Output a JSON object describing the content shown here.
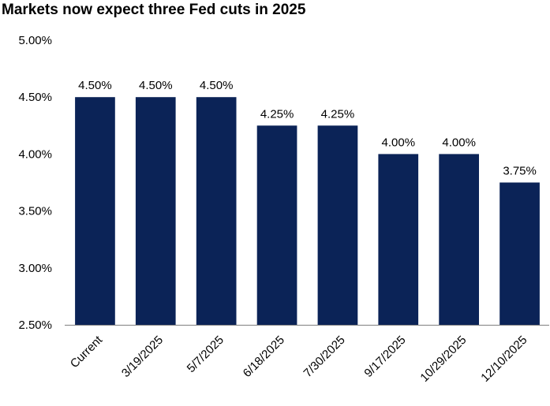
{
  "chart_data": {
    "type": "bar",
    "title": "Markets  now expect three Fed cuts in 2025",
    "xlabel": "",
    "ylabel": "",
    "categories": [
      "Current",
      "3/19/2025",
      "5/7/2025",
      "6/18/2025",
      "7/30/2025",
      "9/17/2025",
      "10/29/2025",
      "12/10/2025"
    ],
    "values": [
      4.5,
      4.5,
      4.5,
      4.25,
      4.25,
      4.0,
      4.0,
      3.75
    ],
    "data_labels": [
      "4.50%",
      "4.50%",
      "4.50%",
      "4.25%",
      "4.25%",
      "4.00%",
      "4.00%",
      "3.75%"
    ],
    "ylim": [
      2.5,
      5.0
    ],
    "yticks": [
      2.5,
      3.0,
      3.5,
      4.0,
      4.5,
      5.0
    ],
    "ytick_labels": [
      "2.50%",
      "3.00%",
      "3.50%",
      "4.00%",
      "4.50%",
      "5.00%"
    ],
    "bar_color": "#0b2357",
    "grid": false,
    "legend": "none"
  }
}
